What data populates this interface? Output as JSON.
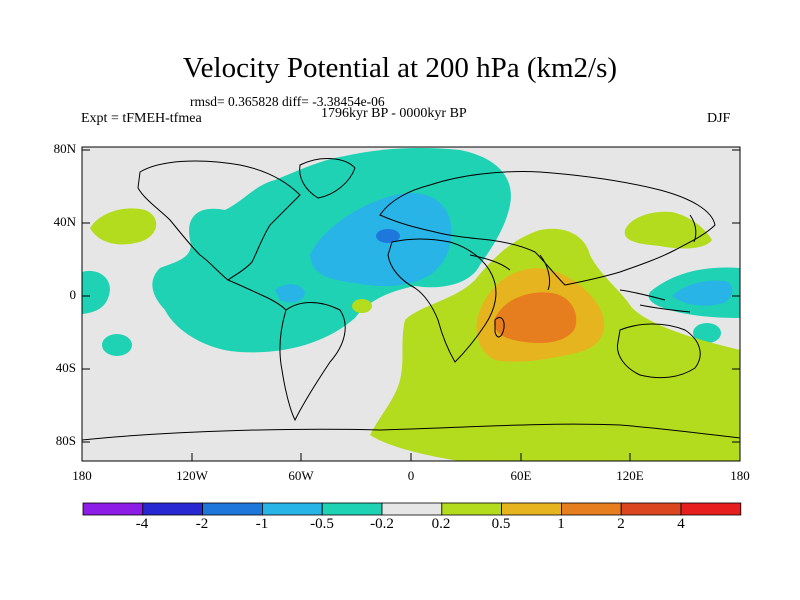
{
  "header": {
    "title": "Velocity Potential at 200 hPa (km2/s)",
    "stats": "rmsd= 0.365828 diff= -3.38454e-06",
    "experiment": "Expt = tFMEH-tfmea",
    "period": "1796kyr BP - 0000kyr BP",
    "season": "DJF"
  },
  "axes": {
    "lat_labels": [
      "80N",
      "40N",
      "0",
      "40S",
      "80S"
    ],
    "lon_labels": [
      "180",
      "120W",
      "60W",
      "0",
      "60E",
      "120E",
      "180"
    ]
  },
  "colorbar": {
    "labels": [
      "-4",
      "-2",
      "-1",
      "-0.5",
      "-0.2",
      "0.2",
      "0.5",
      "1",
      "2",
      "4"
    ],
    "colors": [
      "#8c1ce6",
      "#2828d2",
      "#1e78dc",
      "#28b4e6",
      "#20d2b4",
      "#e6e6e6",
      "#b4dc1e",
      "#e6b41e",
      "#e67d1e",
      "#dc461e",
      "#e61e1e"
    ]
  },
  "map": {
    "ocean_land_color": "#e6e6e6",
    "contour_fill_colors": {
      "neg_05": "#20d2b4",
      "neg_1": "#28b4e6",
      "neg_2": "#1e78dc",
      "pos_02": "#b4dc1e",
      "pos_05": "#e6b41e",
      "pos_1": "#e67d1e"
    }
  }
}
